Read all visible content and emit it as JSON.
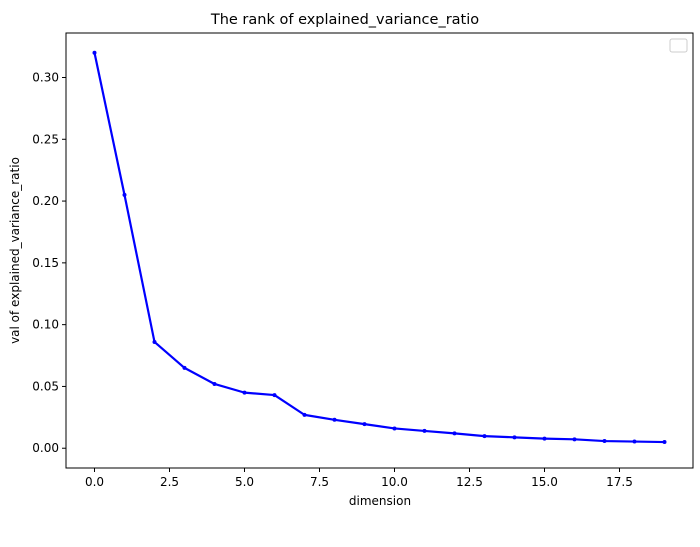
{
  "chart_data": {
    "type": "line",
    "title": "The rank of explained_variance_ratio",
    "xlabel": "dimension",
    "ylabel": "val of explained_variance_ratio",
    "xlim": [
      -0.95,
      19.95
    ],
    "ylim": [
      -0.016,
      0.336
    ],
    "grid": false,
    "legend": "top-right",
    "x_ticks": [
      0,
      2.5,
      5,
      7.5,
      10,
      12.5,
      15,
      17.5
    ],
    "x_tick_labels": [
      "0.0",
      "2.5",
      "5.0",
      "7.5",
      "10.0",
      "12.5",
      "15.0",
      "17.5"
    ],
    "y_ticks": [
      0,
      0.05,
      0.1,
      0.15,
      0.2,
      0.25,
      0.3
    ],
    "y_tick_labels": [
      "0.00",
      "0.05",
      "0.10",
      "0.15",
      "0.20",
      "0.25",
      "0.30"
    ],
    "x": [
      0,
      1,
      2,
      3,
      4,
      5,
      6,
      7,
      8,
      9,
      10,
      11,
      12,
      13,
      14,
      15,
      16,
      17,
      18,
      19
    ],
    "series": [
      {
        "color": "#0000ff",
        "values": [
          0.32,
          0.205,
          0.086,
          0.065,
          0.052,
          0.045,
          0.043,
          0.027,
          0.023,
          0.0195,
          0.016,
          0.014,
          0.012,
          0.0098,
          0.0088,
          0.0078,
          0.0072,
          0.0058,
          0.0054,
          0.005
        ]
      }
    ]
  }
}
